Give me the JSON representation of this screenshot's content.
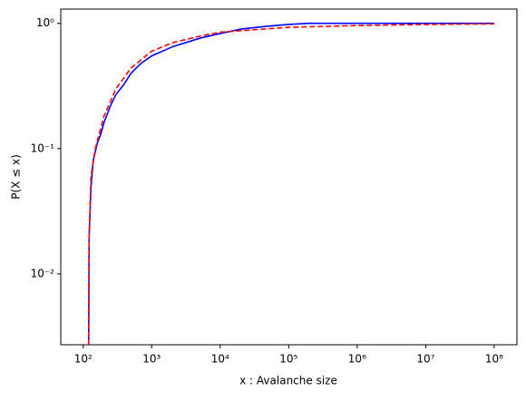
{
  "chart_data": {
    "type": "line",
    "xlabel": "x :  Avalanche size",
    "ylabel": "P(X ≤ x)",
    "xscale": "log",
    "yscale": "log",
    "xlim": [
      47,
      215000000
    ],
    "ylim": [
      0.00272,
      1.3
    ],
    "xticks": [
      {
        "value": 100,
        "label": "10²"
      },
      {
        "value": 1000,
        "label": "10³"
      },
      {
        "value": 10000,
        "label": "10⁴"
      },
      {
        "value": 100000,
        "label": "10⁵"
      },
      {
        "value": 1000000,
        "label": "10⁶"
      },
      {
        "value": 10000000,
        "label": "10⁷"
      },
      {
        "value": 100000000,
        "label": "10⁸"
      }
    ],
    "yticks": [
      {
        "value": 0.01,
        "label": "10⁻²"
      },
      {
        "value": 0.1,
        "label": "10⁻¹"
      },
      {
        "value": 1,
        "label": "10⁰"
      }
    ],
    "series": [
      {
        "color": "#0000ff",
        "linestyle": "solid",
        "x": [
          120,
          122,
          130,
          140,
          160,
          180,
          200,
          250,
          300,
          400,
          500,
          700,
          1000,
          2000,
          5000,
          10000,
          20000,
          50000,
          100000,
          200000,
          1000000,
          100000000
        ],
        "values": [
          0.0027,
          0.02,
          0.05,
          0.08,
          0.11,
          0.13,
          0.16,
          0.22,
          0.27,
          0.33,
          0.4,
          0.48,
          0.55,
          0.65,
          0.76,
          0.83,
          0.9,
          0.95,
          0.98,
          1.0,
          1.0,
          1.0
        ]
      },
      {
        "color": "#ff0000",
        "linestyle": "dashed",
        "x": [
          120,
          122,
          130,
          150,
          200,
          300,
          500,
          1000,
          2000,
          5000,
          10000,
          100000,
          1000000,
          10000000,
          100000000
        ],
        "values": [
          0.0027,
          0.02,
          0.06,
          0.1,
          0.18,
          0.3,
          0.44,
          0.6,
          0.7,
          0.79,
          0.85,
          0.93,
          0.96,
          0.98,
          0.99
        ]
      }
    ]
  }
}
